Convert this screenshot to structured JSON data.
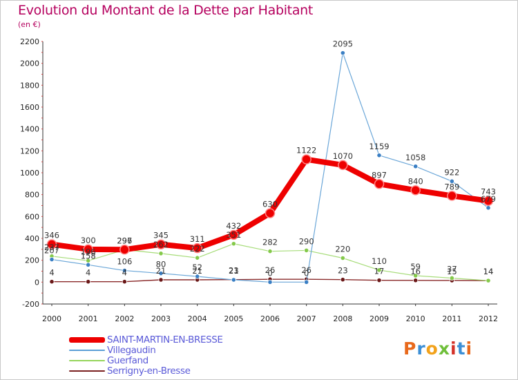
{
  "title": "Evolution du Montant de la Dette par Habitant",
  "unit": "(en €)",
  "logo": "Proxiti",
  "logo_colors": [
    "#e8691c",
    "#3c8fd6",
    "#f2a21b",
    "#6fbf3a",
    "#d4332a",
    "#3c8fd6",
    "#e8691c"
  ],
  "chart_data": {
    "type": "line",
    "title": "Evolution du Montant de la Dette par Habitant",
    "ylabel": "(en €)",
    "xlabel": "",
    "ylim": [
      -200,
      2200
    ],
    "yticks": [
      -200,
      0,
      200,
      400,
      600,
      800,
      1000,
      1200,
      1400,
      1600,
      1800,
      2000,
      2200
    ],
    "grid": false,
    "legend_position": "bottom-left",
    "x": [
      "2000",
      "2001",
      "2002",
      "2003",
      "2004",
      "2005",
      "2006",
      "2007",
      "2008",
      "2009",
      "2010",
      "2011",
      "2012"
    ],
    "series": [
      {
        "name": "SAINT-MARTIN-EN-BRESSE",
        "color": "#ee0000",
        "values": [
          346,
          300,
          297,
          345,
          311,
          432,
          630,
          1122,
          1070,
          897,
          840,
          789,
          743
        ],
        "labels": [
          "346",
          "300",
          "297",
          "345",
          "311",
          "432",
          "630",
          "1122",
          "1070",
          "897",
          "840",
          "789",
          "743"
        ]
      },
      {
        "name": "Villegaudin",
        "color": "#5b9fd6",
        "values": [
          207,
          158,
          106,
          80,
          52,
          21,
          0,
          0,
          2095,
          1159,
          1058,
          922,
          679
        ],
        "labels": [
          "207",
          "158",
          "106",
          "80",
          "52",
          "21",
          "0",
          "0",
          "2095",
          "1159",
          "1058",
          "922",
          "679"
        ]
      },
      {
        "name": "Guerfand",
        "color": "#94d45a",
        "values": [
          237,
          196,
          296,
          262,
          222,
          351,
          282,
          290,
          220,
          110,
          59,
          37,
          14
        ],
        "labels": [
          "237",
          "196",
          "296",
          "262",
          "222",
          "351",
          "282",
          "290",
          "220",
          "110",
          "59",
          "37",
          "14"
        ]
      },
      {
        "name": "Serrigny-en-Bresse",
        "color": "#7a2020",
        "values": [
          4,
          4,
          4,
          21,
          21,
          23,
          26,
          26,
          23,
          17,
          16,
          15,
          14
        ],
        "labels": [
          "4",
          "4",
          "4",
          "21",
          "21",
          "23",
          "26",
          "26",
          "23",
          "17",
          "16",
          "15",
          "14"
        ]
      }
    ]
  }
}
